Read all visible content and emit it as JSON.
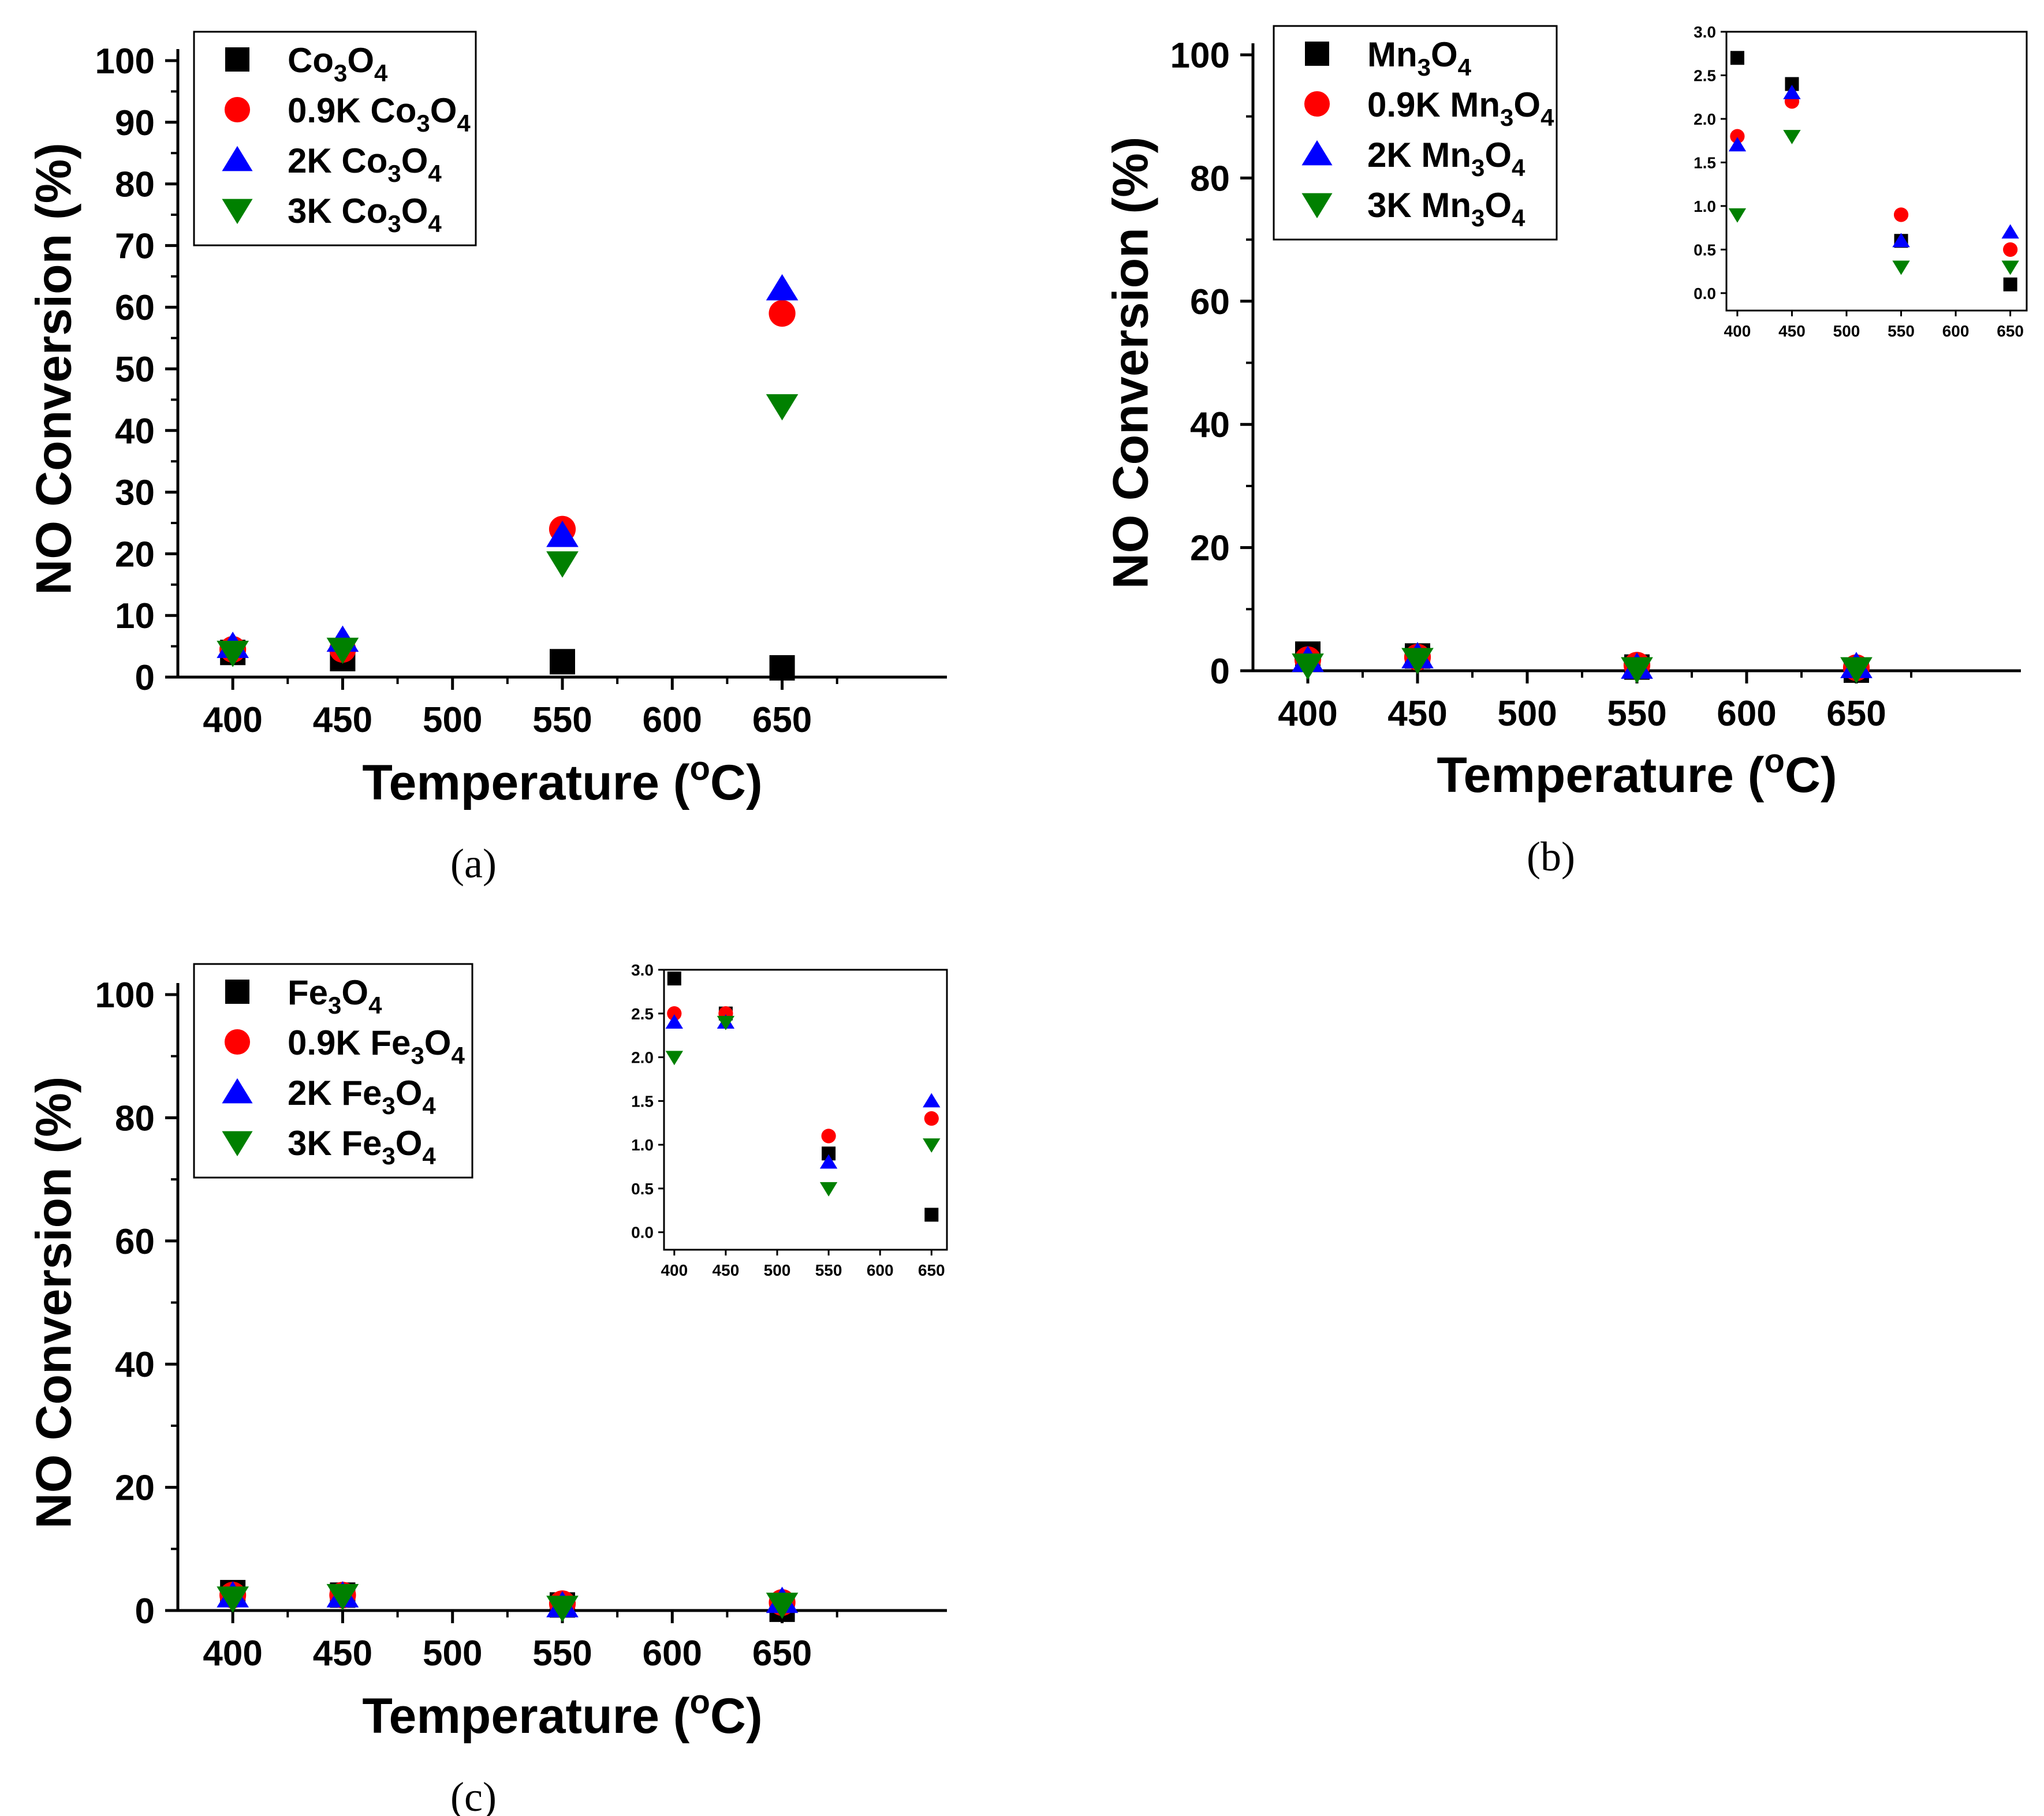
{
  "chart_data": [
    {
      "id": "a",
      "type": "scatter",
      "panel_label": "(a)",
      "xlabel": "Temperature (",
      "xlabel_sup": "o",
      "xlabel_end": "C)",
      "ylabel": "NO Conversion (%)",
      "xlim": [
        375,
        725
      ],
      "ylim": [
        0,
        100
      ],
      "xticks": [
        400,
        450,
        500,
        550,
        600,
        650
      ],
      "yticks": [
        0,
        10,
        20,
        30,
        40,
        50,
        60,
        70,
        80,
        90,
        100
      ],
      "legend_position": "top-left",
      "series": [
        {
          "prefix": "",
          "base": "Co",
          "sub1": "3",
          "mid": "O",
          "sub2": "4",
          "marker": "square",
          "color": "#000000",
          "x": [
            400,
            450,
            550,
            650
          ],
          "y": [
            4,
            3,
            2.5,
            1.5
          ]
        },
        {
          "prefix": "0.9K ",
          "base": "Co",
          "sub1": "3",
          "mid": "O",
          "sub2": "4",
          "marker": "circle",
          "color": "#ff0000",
          "x": [
            400,
            450,
            550,
            650
          ],
          "y": [
            4.5,
            4.5,
            24,
            59
          ]
        },
        {
          "prefix": "2K ",
          "base": "Co",
          "sub1": "3",
          "mid": "O",
          "sub2": "4",
          "marker": "triangle-up",
          "color": "#0000ff",
          "x": [
            400,
            450,
            550,
            650
          ],
          "y": [
            5,
            6,
            23,
            63
          ]
        },
        {
          "prefix": "3K ",
          "base": "Co",
          "sub1": "3",
          "mid": "O",
          "sub2": "4",
          "marker": "triangle-down",
          "color": "#008000",
          "x": [
            400,
            450,
            550,
            650
          ],
          "y": [
            4,
            4.5,
            18.5,
            44
          ]
        }
      ]
    },
    {
      "id": "b",
      "type": "scatter",
      "panel_label": "(b)",
      "xlabel": "Temperature (",
      "xlabel_sup": "o",
      "xlabel_end": "C)",
      "ylabel": "NO Conversion (%)",
      "xlim": [
        375,
        725
      ],
      "ylim": [
        0,
        100
      ],
      "xticks": [
        400,
        450,
        500,
        550,
        600,
        650
      ],
      "yticks": [
        0,
        20,
        40,
        60,
        80,
        100
      ],
      "legend_position": "top-left",
      "series": [
        {
          "prefix": "",
          "base": "Mn",
          "sub1": "3",
          "mid": "O",
          "sub2": "4",
          "marker": "square",
          "color": "#000000",
          "x": [
            400,
            450,
            550,
            650
          ],
          "y": [
            2.7,
            2.4,
            0.6,
            0.1
          ]
        },
        {
          "prefix": "0.9K ",
          "base": "Mn",
          "sub1": "3",
          "mid": "O",
          "sub2": "4",
          "marker": "circle",
          "color": "#ff0000",
          "x": [
            400,
            450,
            550,
            650
          ],
          "y": [
            1.8,
            2.2,
            0.9,
            0.5
          ]
        },
        {
          "prefix": "2K ",
          "base": "Mn",
          "sub1": "3",
          "mid": "O",
          "sub2": "4",
          "marker": "triangle-up",
          "color": "#0000ff",
          "x": [
            400,
            450,
            550,
            650
          ],
          "y": [
            1.7,
            2.3,
            0.6,
            0.7
          ]
        },
        {
          "prefix": "3K ",
          "base": "Mn",
          "sub1": "3",
          "mid": "O",
          "sub2": "4",
          "marker": "triangle-down",
          "color": "#008000",
          "x": [
            400,
            450,
            550,
            650
          ],
          "y": [
            0.9,
            1.8,
            0.3,
            0.3
          ]
        }
      ],
      "inset": {
        "xlim": [
          390,
          665
        ],
        "ylim": [
          -0.2,
          3.0
        ],
        "xticks": [
          400,
          450,
          500,
          550,
          600,
          650
        ],
        "yticks": [
          "0.0",
          "0.5",
          "1.0",
          "1.5",
          "2.0",
          "2.5",
          "3.0"
        ]
      }
    },
    {
      "id": "c",
      "type": "scatter",
      "panel_label": "(c)",
      "xlabel": "Temperature (",
      "xlabel_sup": "o",
      "xlabel_end": "C)",
      "ylabel": "NO Conversion (%)",
      "xlim": [
        375,
        725
      ],
      "ylim": [
        0,
        100
      ],
      "xticks": [
        400,
        450,
        500,
        550,
        600,
        650
      ],
      "yticks": [
        0,
        20,
        40,
        60,
        80,
        100
      ],
      "legend_position": "top-left",
      "series": [
        {
          "prefix": "",
          "base": "Fe",
          "sub1": "3",
          "mid": "O",
          "sub2": "4",
          "marker": "square",
          "color": "#000000",
          "x": [
            400,
            450,
            550,
            650
          ],
          "y": [
            2.9,
            2.5,
            0.9,
            0.2
          ]
        },
        {
          "prefix": "0.9K ",
          "base": "Fe",
          "sub1": "3",
          "mid": "O",
          "sub2": "4",
          "marker": "circle",
          "color": "#ff0000",
          "x": [
            400,
            450,
            550,
            650
          ],
          "y": [
            2.5,
            2.5,
            1.1,
            1.3
          ]
        },
        {
          "prefix": "2K ",
          "base": "Fe",
          "sub1": "3",
          "mid": "O",
          "sub2": "4",
          "marker": "triangle-up",
          "color": "#0000ff",
          "x": [
            400,
            450,
            550,
            650
          ],
          "y": [
            2.4,
            2.4,
            0.8,
            1.5
          ]
        },
        {
          "prefix": "3K ",
          "base": "Fe",
          "sub1": "3",
          "mid": "O",
          "sub2": "4",
          "marker": "triangle-down",
          "color": "#008000",
          "x": [
            400,
            450,
            550,
            650
          ],
          "y": [
            2.0,
            2.4,
            0.5,
            1.0
          ]
        }
      ],
      "inset": {
        "xlim": [
          390,
          665
        ],
        "ylim": [
          -0.2,
          3.0
        ],
        "xticks": [
          400,
          450,
          500,
          550,
          600,
          650
        ],
        "yticks": [
          "0.0",
          "0.5",
          "1.0",
          "1.5",
          "2.0",
          "2.5",
          "3.0"
        ]
      }
    }
  ]
}
